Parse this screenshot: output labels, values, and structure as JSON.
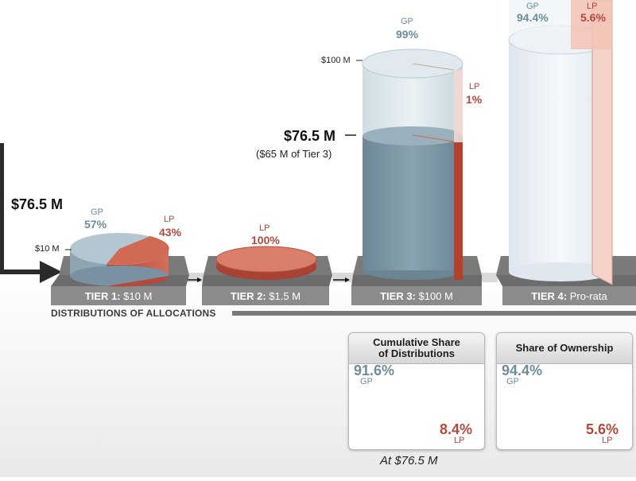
{
  "entry": {
    "amount": "$76.5 M"
  },
  "tier1": {
    "label": "TIER 1:",
    "desc": "$10 M",
    "tick": "$10 M",
    "gp_label": "GP",
    "gp_value": "57%",
    "lp_label": "LP",
    "lp_value": "43%",
    "gp_share": 0.57
  },
  "tier2": {
    "label": "TIER 2:",
    "desc": "$1.5 M",
    "lp_label": "LP",
    "lp_value": "100%"
  },
  "tier3": {
    "label": "TIER 3:",
    "desc": "$100 M",
    "tick": "$100 M",
    "level_amount": "$76.5 M",
    "level_note": "($65 M of Tier 3)",
    "gp_label": "GP",
    "gp_value": "99%",
    "lp_label": "LP",
    "lp_value": "1%",
    "fill_fraction": 0.65
  },
  "tier4": {
    "label": "TIER 4:",
    "desc": "Pro-rata",
    "gp_label": "GP",
    "gp_value": "94.4%",
    "lp_label": "LP",
    "lp_value": "5.6%"
  },
  "section": {
    "title": "DISTRIBUTIONS OF ALLOCATIONS"
  },
  "cards": {
    "cumulative": {
      "title_line1": "Cumulative Share",
      "title_line2": "of Distributions",
      "gp_value": "91.6%",
      "gp_label": "GP",
      "lp_value": "8.4%",
      "lp_label": "LP",
      "gp_share": 0.916
    },
    "ownership": {
      "title": "Share of Ownership",
      "gp_value": "94.4%",
      "gp_label": "GP",
      "lp_value": "5.6%",
      "lp_label": "LP",
      "gp_share": 0.944
    }
  },
  "footer": {
    "note": "At $76.5 M"
  },
  "colors": {
    "gp": "#7e98a6",
    "lp": "#c55c47",
    "platform": "#8b8b8b",
    "arrow": "#2b2b2b"
  }
}
